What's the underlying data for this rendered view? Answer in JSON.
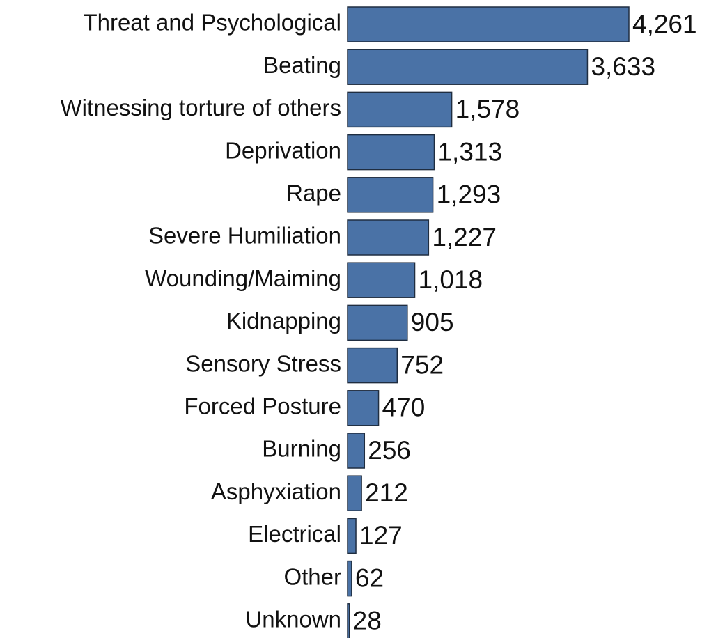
{
  "chart_data": {
    "type": "bar",
    "orientation": "horizontal",
    "color": "#4a72a6",
    "categories": [
      "Threat and Psychological",
      "Beating",
      "Witnessing torture of others",
      "Deprivation",
      "Rape",
      "Severe Humiliation",
      "Wounding/Maiming",
      "Kidnapping",
      "Sensory Stress",
      "Forced Posture",
      "Burning",
      "Asphyxiation",
      "Electrical",
      "Other",
      "Unknown"
    ],
    "values": [
      4261,
      3633,
      1578,
      1313,
      1293,
      1227,
      1018,
      905,
      752,
      470,
      256,
      212,
      127,
      62,
      28
    ],
    "value_labels": [
      "4,261",
      "3,633",
      "1,578",
      "1,313",
      "1,293",
      "1,227",
      "1,018",
      "905",
      "752",
      "470",
      "256",
      "212",
      "127",
      "62",
      "28"
    ]
  }
}
